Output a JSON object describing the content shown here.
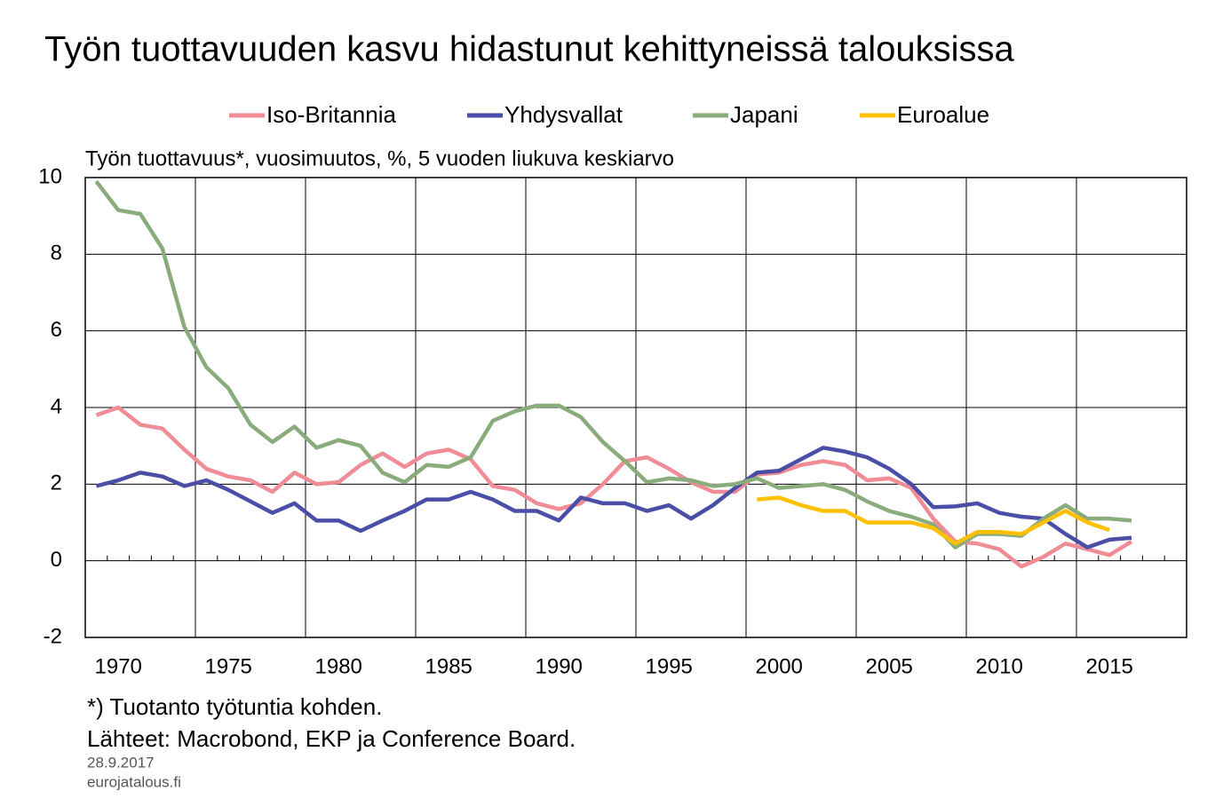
{
  "chart_data": {
    "type": "line",
    "title": "Työn tuottavuuden kasvu hidastunut kehittyneissä talouksissa",
    "subtitle": "Työn tuottavuus*, vuosimuutos, %, 5 vuoden liukuva keskiarvo",
    "footnote": "*) Tuotanto työtuntia kohden.",
    "source": "Lähteet: Macrobond, EKP ja Conference Board.",
    "date": "28.9.2017",
    "site": "eurojatalous.fi",
    "categories": [
      null,
      "1970",
      null,
      null,
      null,
      null,
      "1975",
      null,
      null,
      null,
      null,
      "1980",
      null,
      null,
      null,
      null,
      "1985",
      null,
      null,
      null,
      null,
      "1990",
      null,
      null,
      null,
      null,
      "1995",
      null,
      null,
      null,
      null,
      "2000",
      null,
      null,
      null,
      null,
      "2005",
      null,
      null,
      null,
      null,
      "2010",
      null,
      null,
      null,
      null,
      "2015",
      null,
      null,
      null
    ],
    "ylim": [
      -2,
      10
    ],
    "yticks": [
      -2,
      0,
      2,
      4,
      6,
      8,
      10
    ],
    "grid": true,
    "legend": "top",
    "series": [
      {
        "name": "Iso-Britannia",
        "color": "#f08c96",
        "values": [
          3.8,
          4.0,
          3.55,
          3.45,
          2.9,
          2.4,
          2.2,
          2.1,
          1.8,
          2.3,
          2.0,
          2.05,
          2.5,
          2.8,
          2.45,
          2.8,
          2.9,
          2.65,
          1.95,
          1.85,
          1.5,
          1.35,
          1.5,
          2.0,
          2.6,
          2.7,
          2.4,
          2.05,
          1.8,
          1.8,
          2.25,
          2.3,
          2.5,
          2.6,
          2.5,
          2.1,
          2.15,
          1.9,
          1.1,
          0.5,
          0.45,
          0.3,
          -0.15,
          0.1,
          0.45,
          0.3,
          0.15,
          0.5,
          null,
          null
        ]
      },
      {
        "name": "Yhdysvallat",
        "color": "#4a4ea6",
        "values": [
          1.95,
          2.1,
          2.3,
          2.2,
          1.95,
          2.1,
          1.85,
          1.55,
          1.25,
          1.5,
          1.05,
          1.05,
          0.78,
          1.05,
          1.3,
          1.6,
          1.6,
          1.8,
          1.6,
          1.3,
          1.3,
          1.05,
          1.65,
          1.5,
          1.5,
          1.3,
          1.45,
          1.1,
          1.45,
          1.9,
          2.3,
          2.35,
          2.65,
          2.95,
          2.85,
          2.7,
          2.4,
          2.0,
          1.4,
          1.42,
          1.5,
          1.25,
          1.15,
          1.1,
          0.7,
          0.35,
          0.55,
          0.6,
          null,
          null
        ]
      },
      {
        "name": "Japani",
        "color": "#8aac7c",
        "values": [
          9.9,
          9.15,
          9.05,
          8.15,
          6.1,
          5.05,
          4.5,
          3.55,
          3.1,
          3.5,
          2.95,
          3.15,
          3.0,
          2.3,
          2.05,
          2.5,
          2.45,
          2.7,
          3.65,
          3.9,
          4.05,
          4.05,
          3.75,
          3.1,
          2.6,
          2.05,
          2.15,
          2.1,
          1.95,
          2.0,
          2.15,
          1.9,
          1.95,
          2.0,
          1.85,
          1.55,
          1.3,
          1.15,
          0.95,
          0.35,
          0.7,
          0.7,
          0.65,
          1.1,
          1.45,
          1.1,
          1.1,
          1.05,
          null,
          null
        ]
      },
      {
        "name": "Euroalue",
        "color": "#ffc000",
        "values": [
          null,
          null,
          null,
          null,
          null,
          null,
          null,
          null,
          null,
          null,
          null,
          null,
          null,
          null,
          null,
          null,
          null,
          null,
          null,
          null,
          null,
          null,
          null,
          null,
          null,
          null,
          null,
          null,
          null,
          null,
          1.6,
          1.65,
          1.45,
          1.3,
          1.3,
          1.0,
          1.0,
          1.0,
          0.85,
          0.45,
          0.75,
          0.75,
          0.7,
          1.0,
          1.3,
          1.0,
          0.8,
          null,
          null,
          null
        ]
      }
    ]
  }
}
